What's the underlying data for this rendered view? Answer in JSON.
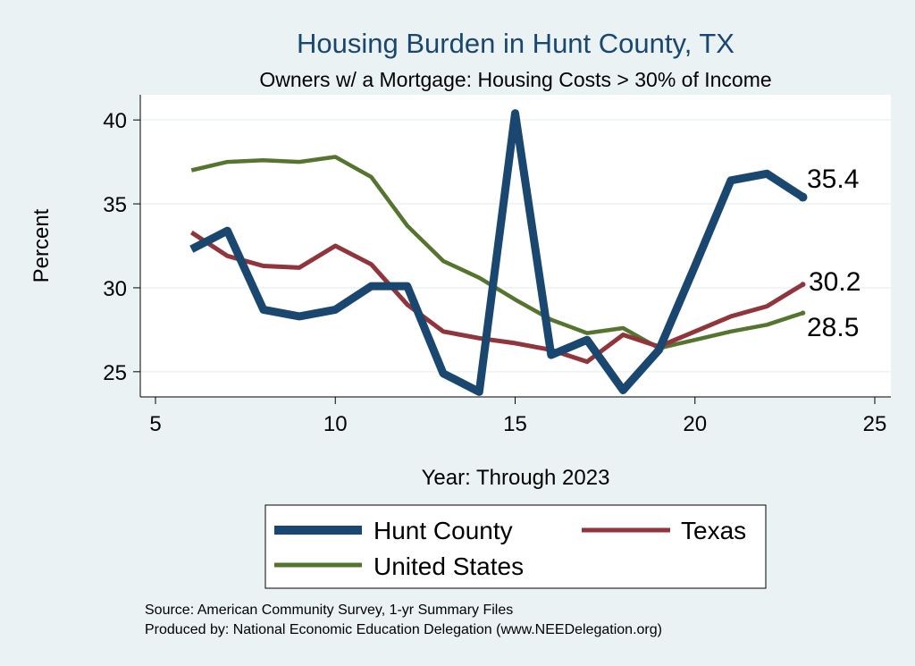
{
  "chart_data": {
    "type": "line",
    "title": "Housing Burden in Hunt County, TX",
    "subtitle": "Owners w/ a Mortgage: Housing Costs > 30% of Income",
    "xlabel": "Year: Through 2023",
    "ylabel": "Percent",
    "xlim": [
      5,
      25
    ],
    "ylim": [
      23.5,
      41.5
    ],
    "xticks": [
      5,
      10,
      15,
      20,
      25
    ],
    "yticks": [
      25,
      30,
      35,
      40
    ],
    "grid": true,
    "legend_position": "bottom",
    "series": [
      {
        "name": "Hunt County",
        "color": "#1a476f",
        "x": [
          6,
          7,
          8,
          9,
          10,
          11,
          12,
          13,
          14,
          15,
          16,
          17,
          18,
          19,
          20,
          21,
          22,
          23
        ],
        "values": [
          32.3,
          33.4,
          28.7,
          28.3,
          28.7,
          30.1,
          30.1,
          24.9,
          23.8,
          40.4,
          26.0,
          26.9,
          23.9,
          26.3,
          31.3,
          36.4,
          36.8,
          35.4
        ],
        "end_label": "35.4"
      },
      {
        "name": "Texas",
        "color": "#90353b",
        "x": [
          6,
          7,
          8,
          9,
          10,
          11,
          12,
          13,
          14,
          15,
          16,
          17,
          18,
          19,
          20,
          21,
          22,
          23
        ],
        "values": [
          33.3,
          31.9,
          31.3,
          31.2,
          32.5,
          31.4,
          29.0,
          27.4,
          27.0,
          26.7,
          26.3,
          25.6,
          27.2,
          26.5,
          27.4,
          28.3,
          28.9,
          30.2
        ],
        "end_label": "30.2"
      },
      {
        "name": "United States",
        "color": "#55752f",
        "x": [
          6,
          7,
          8,
          9,
          10,
          11,
          12,
          13,
          14,
          15,
          16,
          17,
          18,
          19,
          20,
          21,
          22,
          23
        ],
        "values": [
          37.0,
          37.5,
          37.6,
          37.5,
          37.8,
          36.6,
          33.7,
          31.6,
          30.6,
          29.3,
          28.1,
          27.3,
          27.6,
          26.4,
          26.9,
          27.4,
          27.8,
          28.5
        ],
        "end_label": "28.5"
      }
    ],
    "notes": [
      "Source: American Community Survey, 1-yr Summary Files",
      "Produced by: National Economic Education Delegation (www.NEEDelegation.org)"
    ]
  }
}
